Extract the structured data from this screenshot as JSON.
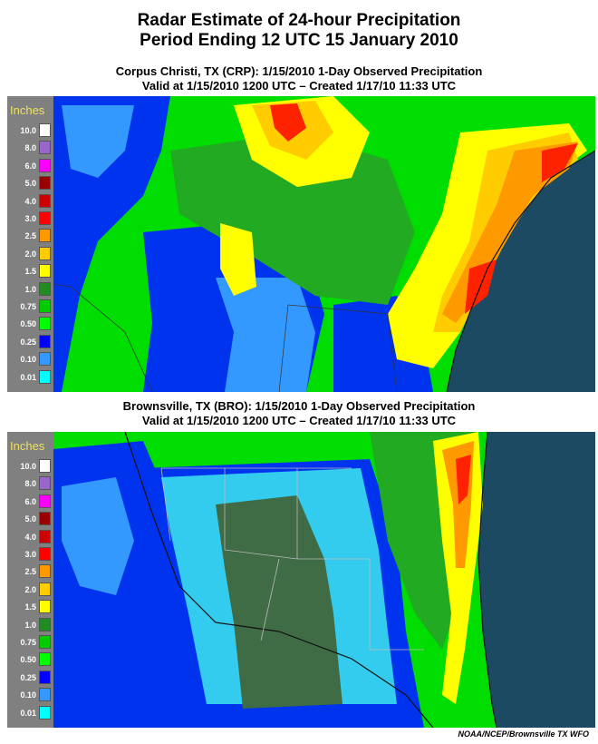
{
  "header": {
    "title_line1": "Radar Estimate of 24-hour Precipitation",
    "title_line2": "Period Ending 12 UTC 15 January 2010"
  },
  "panels": [
    {
      "line1": "Corpus Christi, TX (CRP): 1/15/2010 1-Day Observed Precipitation",
      "line2": "Valid at 1/15/2010 1200 UTC – Created 1/17/10 11:33 UTC"
    },
    {
      "line1": "Brownsville, TX (BRO): 1/15/2010 1-Day Observed Precipitation",
      "line2": "Valid at 1/15/2010 1200 UTC – Created 1/17/10 11:33 UTC"
    }
  ],
  "legend": {
    "title": "Inches",
    "levels": [
      {
        "label": "10.0",
        "color": "#ffffff"
      },
      {
        "label": "8.0",
        "color": "#9966cc"
      },
      {
        "label": "6.0",
        "color": "#ff00ff"
      },
      {
        "label": "5.0",
        "color": "#990000"
      },
      {
        "label": "4.0",
        "color": "#cc0000"
      },
      {
        "label": "3.0",
        "color": "#ff0000"
      },
      {
        "label": "2.5",
        "color": "#ff9900"
      },
      {
        "label": "2.0",
        "color": "#ffcc00"
      },
      {
        "label": "1.5",
        "color": "#ffff00"
      },
      {
        "label": "1.0",
        "color": "#228b22"
      },
      {
        "label": "0.75",
        "color": "#00cc00"
      },
      {
        "label": "0.50",
        "color": "#00ff00"
      },
      {
        "label": "0.25",
        "color": "#0000ff"
      },
      {
        "label": "0.10",
        "color": "#3399ff"
      },
      {
        "label": "0.01",
        "color": "#00ffff"
      }
    ]
  },
  "colors": {
    "ocean": "#1c4a63",
    "trace": "#33ccee",
    "light_blue": "#3399ff",
    "blue": "#0033ee",
    "green": "#00dd00",
    "mid_green": "#22aa22",
    "dark_green": "#1f7a2a",
    "yellow": "#ffff00",
    "gold": "#ffcc00",
    "orange": "#ff9900",
    "red": "#ff2200",
    "no_data": "#3f6b45"
  },
  "credit": "NOAA/NCEP/Brownsville TX WFO"
}
